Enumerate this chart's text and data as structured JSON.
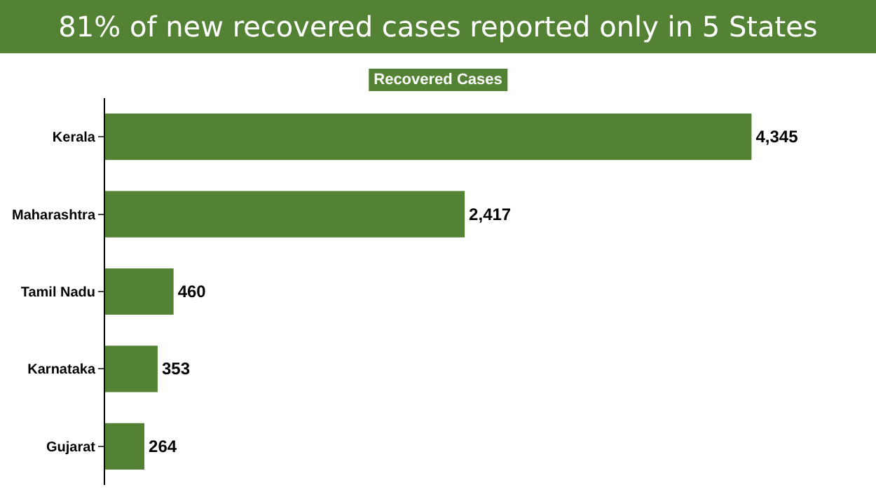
{
  "chart_data": {
    "type": "bar",
    "orientation": "horizontal",
    "title": "81% of new recovered cases reported only in 5 States",
    "subtitle": "Recovered Cases",
    "categories": [
      "Kerala",
      "Maharashtra",
      "Tamil Nadu",
      "Karnataka",
      "Gujarat"
    ],
    "values": [
      4345,
      2417,
      460,
      353,
      264
    ],
    "color": "#548235",
    "value_labels": [
      "4,345",
      "2,417",
      "460",
      "353",
      "264"
    ],
    "grid": false,
    "legend": false
  }
}
